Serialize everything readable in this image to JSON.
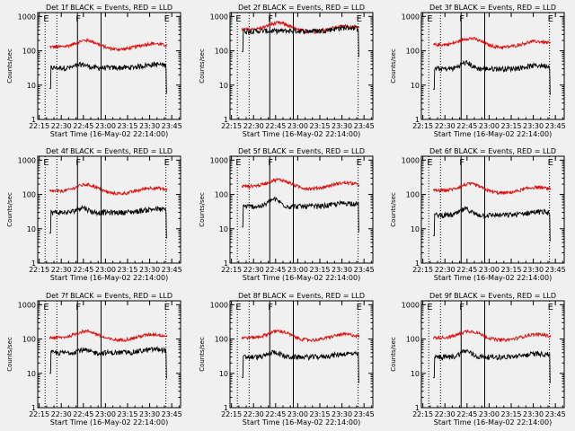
{
  "chart_data": {
    "type": "line",
    "panels": [
      {
        "title": "Det 1f BLACK = Events, RED = LLD",
        "red_base": 130,
        "black_base": 32,
        "black_hump": 1.25
      },
      {
        "title": "Det 2f BLACK = Events, RED = LLD",
        "red_base": 420,
        "black_base": 380,
        "black_hump": 1.0
      },
      {
        "title": "Det 3f BLACK = Events, RED = LLD",
        "red_base": 150,
        "black_base": 30,
        "black_hump": 1.5
      },
      {
        "title": "Det 4f BLACK = Events, RED = LLD",
        "red_base": 125,
        "black_base": 30,
        "black_hump": 1.4
      },
      {
        "title": "Det 5f BLACK = Events, RED = LLD",
        "red_base": 175,
        "black_base": 45,
        "black_hump": 1.6
      },
      {
        "title": "Det 6f BLACK = Events, RED = LLD",
        "red_base": 130,
        "black_base": 25,
        "black_hump": 1.5
      },
      {
        "title": "Det 7f BLACK = Events, RED = LLD",
        "red_base": 110,
        "black_base": 40,
        "black_hump": 1.2
      },
      {
        "title": "Det 8f BLACK = Events, RED = LLD",
        "red_base": 110,
        "black_base": 30,
        "black_hump": 1.4
      },
      {
        "title": "Det 9f BLACK = Events, RED = LLD",
        "red_base": 110,
        "black_base": 30,
        "black_hump": 1.5
      }
    ],
    "series": [
      {
        "name": "Events",
        "color": "#000000"
      },
      {
        "name": "LLD",
        "color": "#e00000"
      }
    ],
    "xlabel": "Start Time (16-May-02 22:14:00)",
    "ylabel": "Counts/sec",
    "x_ticks": [
      "22:15",
      "22:30",
      "22:45",
      "23:00",
      "23:15",
      "23:30",
      "23:45"
    ],
    "x_tick_minutes": [
      1,
      16,
      31,
      46,
      61,
      76,
      91
    ],
    "xlim_minutes": [
      0,
      97
    ],
    "y_scale": "log",
    "ylim": [
      1,
      1300
    ],
    "y_ticks": [
      "1",
      "10",
      "100",
      "1000"
    ],
    "markers": [
      {
        "label": "E",
        "minute": 5,
        "style": "dotted"
      },
      {
        "label": "",
        "minute": 13,
        "style": "dotted"
      },
      {
        "label": "F",
        "minute": 27,
        "style": "solid"
      },
      {
        "label": "",
        "minute": 43,
        "style": "solid"
      },
      {
        "label": "E",
        "minute": 87,
        "style": "dotted"
      }
    ]
  }
}
